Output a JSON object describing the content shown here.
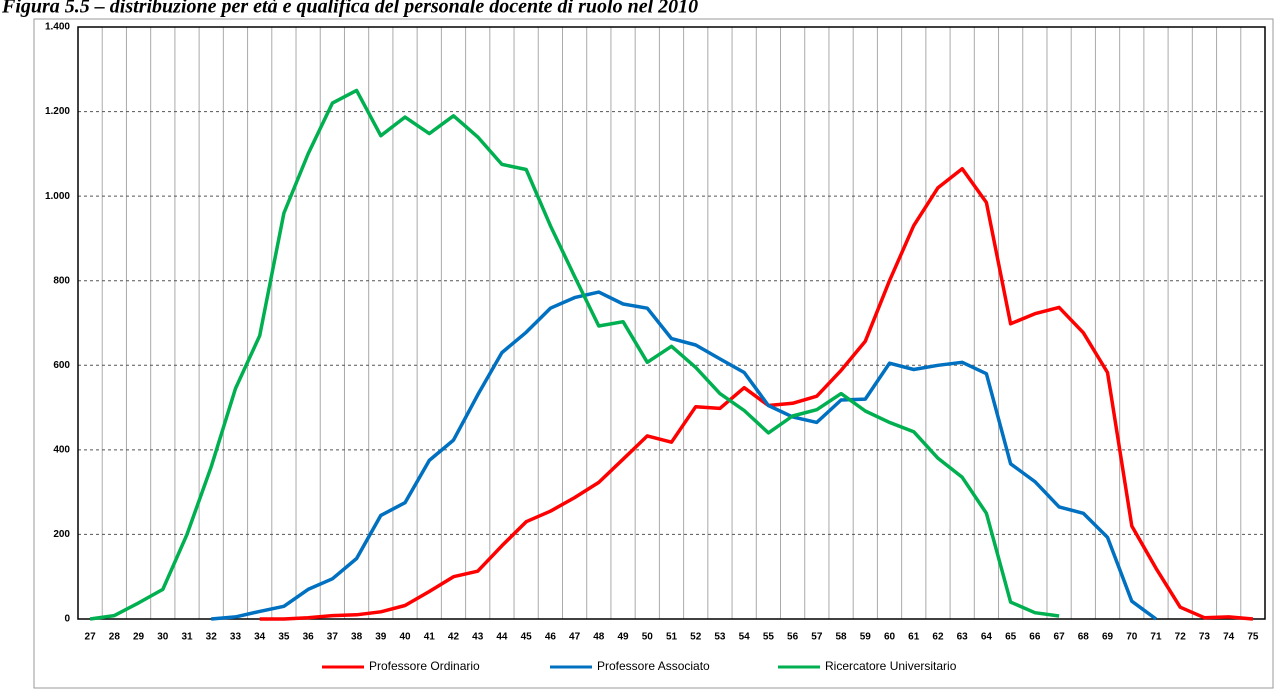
{
  "chart_data": {
    "type": "line",
    "title": "Figura 5.5 – distribuzione per età e qualifica del personale docente di ruolo nel 2010",
    "categories": [
      "27",
      "28",
      "29",
      "30",
      "31",
      "32",
      "33",
      "34",
      "35",
      "36",
      "37",
      "38",
      "39",
      "40",
      "41",
      "42",
      "43",
      "44",
      "45",
      "46",
      "47",
      "48",
      "49",
      "50",
      "51",
      "52",
      "53",
      "54",
      "55",
      "56",
      "57",
      "58",
      "59",
      "60",
      "61",
      "62",
      "63",
      "64",
      "65",
      "66",
      "67",
      "68",
      "69",
      "70",
      "71",
      "72",
      "73",
      "74",
      "75"
    ],
    "series": [
      {
        "name": "Professore Ordinario",
        "color": "#ff0000",
        "values": [
          null,
          null,
          null,
          null,
          null,
          null,
          null,
          0,
          0,
          3,
          8,
          10,
          17,
          32,
          65,
          100,
          113,
          173,
          230,
          255,
          287,
          323,
          378,
          433,
          418,
          502,
          498,
          547,
          505,
          510,
          527,
          588,
          657,
          800,
          930,
          1020,
          1065,
          985,
          698,
          722,
          737,
          677,
          583,
          220,
          120,
          28,
          3,
          5,
          0
        ]
      },
      {
        "name": "Professore Associato",
        "color": "#0070c0",
        "values": [
          null,
          null,
          null,
          null,
          null,
          0,
          5,
          18,
          30,
          70,
          95,
          143,
          245,
          275,
          375,
          423,
          530,
          630,
          678,
          735,
          760,
          773,
          745,
          735,
          663,
          648,
          615,
          583,
          505,
          478,
          465,
          518,
          520,
          605,
          590,
          600,
          607,
          580,
          367,
          325,
          265,
          250,
          193,
          42,
          0,
          null,
          null,
          null,
          null
        ]
      },
      {
        "name": "Ricercatore Universitario",
        "color": "#00b050",
        "values": [
          0,
          8,
          38,
          70,
          200,
          360,
          545,
          670,
          960,
          1100,
          1220,
          1250,
          1143,
          1187,
          1148,
          1190,
          1140,
          1075,
          1063,
          930,
          810,
          693,
          703,
          607,
          645,
          595,
          533,
          493,
          440,
          480,
          495,
          533,
          492,
          465,
          443,
          380,
          335,
          250,
          40,
          15,
          7,
          null,
          null,
          null,
          null,
          null,
          null,
          null,
          null
        ]
      }
    ],
    "ylim": [
      0,
      1400
    ],
    "yticks": [
      0,
      200,
      400,
      600,
      800,
      {
        "value": 1000,
        "label": "1.000"
      },
      {
        "value": 1200,
        "label": "1.200"
      },
      {
        "value": 1400,
        "label": "1.400"
      }
    ],
    "grid": true,
    "legend": "bottom"
  }
}
